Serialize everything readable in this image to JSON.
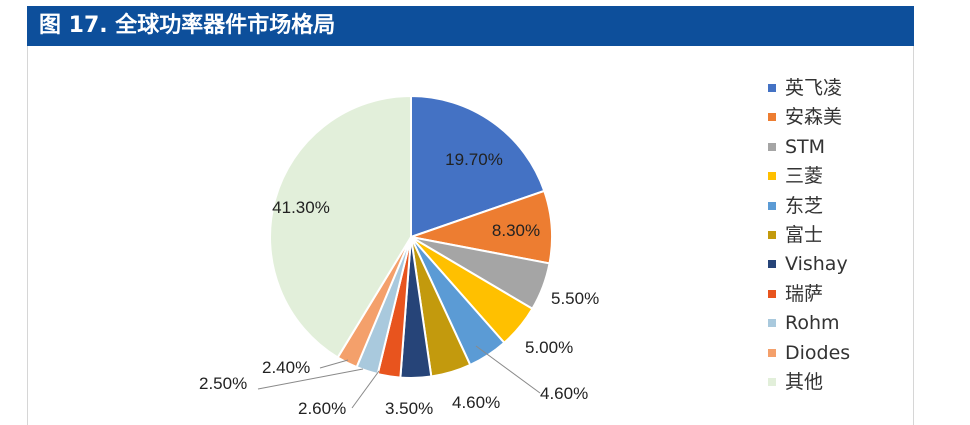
{
  "title": "图 17. 全球功率器件市场格局",
  "chart_data": {
    "type": "pie",
    "title": "",
    "start_angle_deg": 0,
    "direction": "clockwise",
    "legend_position": "right",
    "slices": [
      {
        "label": "英飞凌",
        "value": 19.7,
        "display": "19.70%",
        "color": "#4472c4"
      },
      {
        "label": "安森美",
        "value": 8.3,
        "display": "8.30%",
        "color": "#ed7d31"
      },
      {
        "label": "STM",
        "value": 5.5,
        "display": "5.50%",
        "color": "#a5a5a5"
      },
      {
        "label": "三菱",
        "value": 5.0,
        "display": "5.00%",
        "color": "#ffc000"
      },
      {
        "label": "东芝",
        "value": 4.6,
        "display": "4.60%",
        "color": "#5b9bd5"
      },
      {
        "label": "富士",
        "value": 4.6,
        "display": "4.60%",
        "color": "#c39a0d"
      },
      {
        "label": "Vishay",
        "value": 3.5,
        "display": "3.50%",
        "color": "#264478"
      },
      {
        "label": "瑞萨",
        "value": 2.6,
        "display": "2.60%",
        "color": "#e8541e"
      },
      {
        "label": "Rohm",
        "value": 2.5,
        "display": "2.50%",
        "color": "#a9c9dd"
      },
      {
        "label": "Diodes",
        "value": 2.4,
        "display": "2.40%",
        "color": "#f4a06b"
      },
      {
        "label": "其他",
        "value": 41.3,
        "display": "41.30%",
        "color": "#e2efda"
      }
    ]
  }
}
